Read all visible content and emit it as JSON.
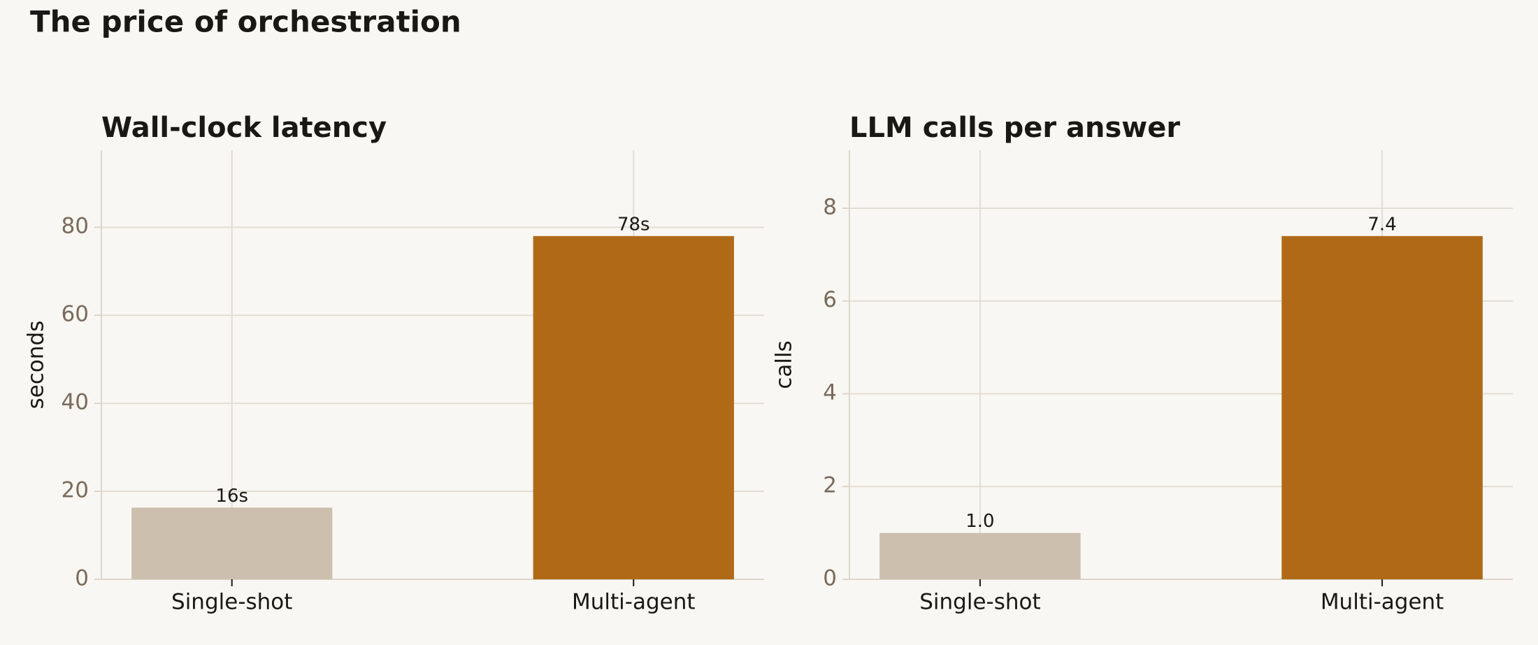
{
  "title": "The price of orchestration",
  "chart_data": [
    {
      "type": "bar",
      "title": "Wall-clock latency",
      "y_label": "seconds",
      "categories": [
        "Single-shot",
        "Multi-agent"
      ],
      "values": [
        16.3,
        78
      ],
      "value_labels": [
        "16s",
        "78s"
      ],
      "colors": [
        "#cdbfae",
        "#b06a17"
      ],
      "ylim": [
        0,
        97.5
      ],
      "yticks": [
        0,
        20,
        40,
        60,
        80
      ],
      "grid": true
    },
    {
      "type": "bar",
      "title": "LLM calls per answer",
      "y_label": "calls",
      "categories": [
        "Single-shot",
        "Multi-agent"
      ],
      "values": [
        1,
        7.4
      ],
      "value_labels": [
        "1.0",
        "7.4"
      ],
      "colors": [
        "#cdbfae",
        "#b06a17"
      ],
      "ylim": [
        0,
        9.25
      ],
      "yticks": [
        0,
        2,
        4,
        6,
        8
      ],
      "grid": true
    }
  ]
}
